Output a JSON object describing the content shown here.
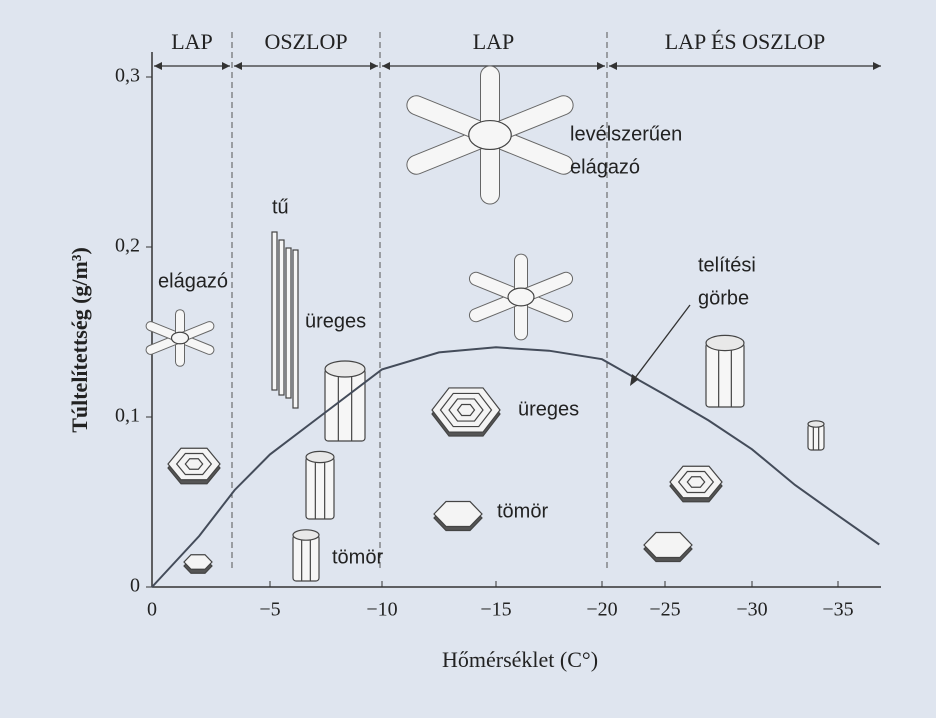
{
  "chart_data": {
    "type": "line",
    "regions": [
      "LAP",
      "OSZLOP",
      "LAP",
      "LAP ÉS OSZLOP"
    ],
    "x_label": "Hőmérséklet (C°)",
    "y_label": "Túltelítettség (g/m³)",
    "x": [
      0,
      -2,
      -3.5,
      -5,
      -7.2,
      -10,
      -12.5,
      -15,
      -17.5,
      -20,
      -25,
      -27.5,
      -30,
      -32.5,
      -35,
      -37.4
    ],
    "values": [
      0,
      0.03,
      0.057,
      0.078,
      0.1,
      0.128,
      0.138,
      0.141,
      0.139,
      0.134,
      0.113,
      0.098,
      0.081,
      0.06,
      0.042,
      0.025
    ],
    "color": "#444c5a",
    "xlim": [
      0,
      -37.5
    ],
    "ylim": [
      0,
      0.31
    ],
    "xticks": [
      0,
      {
        "value": -5,
        "label": "−5"
      },
      {
        "value": -10,
        "label": "−10"
      },
      {
        "value": -15,
        "label": "−15"
      },
      {
        "value": -20,
        "label": "−20"
      },
      {
        "value": -25,
        "label": "−25"
      },
      {
        "value": -30,
        "label": "−30"
      },
      {
        "value": -35,
        "label": "−35"
      }
    ],
    "yticks": [
      0,
      {
        "value": 0.1,
        "label": "0,1"
      },
      {
        "value": 0.2,
        "label": "0,2"
      },
      {
        "value": 0.3,
        "label": "0,3"
      }
    ],
    "annotations": [
      {
        "lines": [
          "tű"
        ]
      },
      {
        "lines": [
          "üreges"
        ]
      },
      {
        "lines": [
          "elágazó"
        ]
      },
      {
        "lines": [
          "levélszerűen",
          "elágazó"
        ]
      },
      {
        "lines": [
          "telítési",
          "görbe"
        ]
      },
      {
        "lines": [
          "üreges"
        ]
      },
      {
        "lines": [
          "tömör"
        ]
      },
      {
        "lines": [
          "tömör"
        ]
      }
    ]
  }
}
